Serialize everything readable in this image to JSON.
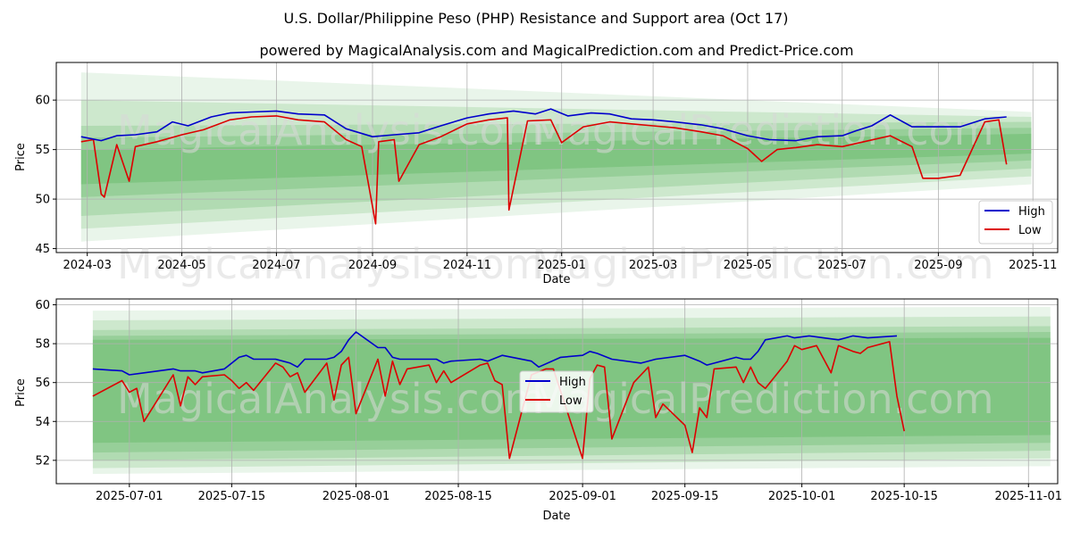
{
  "title": "U.S. Dollar/Philippine Peso (PHP) Resistance and Support area (Oct 17)",
  "subtitle": "powered by MagicalAnalysis.com and MagicalPrediction.com and Predict-Price.com",
  "watermarks": [
    "MagicalAnalysis.com",
    "MagicalPrediction.com"
  ],
  "colors": {
    "high": "#0000cc",
    "low": "#dd0000",
    "band": "#4caf50"
  },
  "chart_data": [
    {
      "type": "line",
      "xlabel": "Date",
      "ylabel": "Price",
      "xlim": [
        "2024-02-10",
        "2025-11-17"
      ],
      "ylim": [
        44.6,
        63.8
      ],
      "grid": true,
      "legend": {
        "position": "bottom-right",
        "entries": [
          "High",
          "Low"
        ]
      },
      "x_ticks": [
        "2024-03",
        "2024-05",
        "2024-07",
        "2024-09",
        "2024-11",
        "2025-01",
        "2025-03",
        "2025-05",
        "2025-07",
        "2025-09",
        "2025-11"
      ],
      "y_ticks": [
        45,
        50,
        55,
        60
      ],
      "bands": {
        "start": "2024-02-26",
        "end": "2025-10-31",
        "lower_start": [
          45.7,
          47.0,
          48.3,
          50.2,
          51.5
        ],
        "lower_end": [
          51.5,
          52.3,
          53.1,
          53.9,
          54.6
        ],
        "upper_start": [
          62.8,
          60.0,
          57.4,
          56.2,
          55.0
        ],
        "upper_end": [
          58.8,
          58.3,
          57.8,
          57.2,
          56.6
        ]
      },
      "series": [
        {
          "name": "High",
          "x": [
            "2024-02-26",
            "2024-03-10",
            "2024-03-20",
            "2024-04-01",
            "2024-04-15",
            "2024-04-25",
            "2024-05-05",
            "2024-05-20",
            "2024-06-01",
            "2024-06-15",
            "2024-07-01",
            "2024-07-15",
            "2024-08-01",
            "2024-08-15",
            "2024-09-01",
            "2024-09-15",
            "2024-10-01",
            "2024-10-15",
            "2024-11-01",
            "2024-11-15",
            "2024-12-01",
            "2024-12-15",
            "2024-12-25",
            "2025-01-05",
            "2025-01-20",
            "2025-02-01",
            "2025-02-15",
            "2025-03-01",
            "2025-03-15",
            "2025-04-01",
            "2025-04-15",
            "2025-05-01",
            "2025-05-15",
            "2025-06-01",
            "2025-06-15",
            "2025-07-01",
            "2025-07-10",
            "2025-07-20",
            "2025-08-01",
            "2025-08-15",
            "2025-09-01",
            "2025-09-15",
            "2025-10-01",
            "2025-10-15"
          ],
          "values": [
            56.3,
            55.9,
            56.4,
            56.5,
            56.8,
            57.8,
            57.4,
            58.3,
            58.7,
            58.8,
            58.9,
            58.6,
            58.5,
            57.1,
            56.3,
            56.5,
            56.7,
            57.4,
            58.2,
            58.6,
            58.9,
            58.6,
            59.1,
            58.4,
            58.7,
            58.6,
            58.1,
            58.0,
            57.8,
            57.5,
            57.1,
            56.4,
            56.0,
            55.9,
            56.3,
            56.4,
            56.9,
            57.4,
            58.5,
            57.3,
            57.3,
            57.3,
            58.1,
            58.3
          ]
        },
        {
          "name": "Low",
          "x": [
            "2024-02-26",
            "2024-03-05",
            "2024-03-10",
            "2024-03-12",
            "2024-03-20",
            "2024-03-28",
            "2024-04-01",
            "2024-04-15",
            "2024-05-01",
            "2024-05-15",
            "2024-06-01",
            "2024-06-15",
            "2024-07-01",
            "2024-07-15",
            "2024-08-01",
            "2024-08-15",
            "2024-08-25",
            "2024-09-03",
            "2024-09-05",
            "2024-09-15",
            "2024-09-18",
            "2024-10-01",
            "2024-10-15",
            "2024-11-01",
            "2024-11-15",
            "2024-11-27",
            "2024-11-28",
            "2024-12-10",
            "2024-12-25",
            "2025-01-01",
            "2025-01-15",
            "2025-02-01",
            "2025-02-15",
            "2025-03-01",
            "2025-03-15",
            "2025-04-01",
            "2025-04-15",
            "2025-05-01",
            "2025-05-10",
            "2025-05-20",
            "2025-06-01",
            "2025-06-15",
            "2025-07-01",
            "2025-07-15",
            "2025-08-01",
            "2025-08-15",
            "2025-08-22",
            "2025-09-01",
            "2025-09-15",
            "2025-10-01",
            "2025-10-10",
            "2025-10-15"
          ],
          "values": [
            55.8,
            56.0,
            50.5,
            50.2,
            55.5,
            51.8,
            55.3,
            55.8,
            56.5,
            57.0,
            58.0,
            58.3,
            58.4,
            58.0,
            57.8,
            56.0,
            55.3,
            47.5,
            55.8,
            56.0,
            51.8,
            55.5,
            56.3,
            57.6,
            58.0,
            58.2,
            48.9,
            57.9,
            58.0,
            55.7,
            57.3,
            57.8,
            57.6,
            57.4,
            57.2,
            56.8,
            56.4,
            55.1,
            53.8,
            55.0,
            55.2,
            55.5,
            55.3,
            55.8,
            56.4,
            55.3,
            52.1,
            52.1,
            52.4,
            57.8,
            58.0,
            53.5
          ]
        }
      ]
    },
    {
      "type": "line",
      "xlabel": "Date",
      "ylabel": "Price",
      "xlim": [
        "2025-06-21",
        "2025-11-05"
      ],
      "ylim": [
        50.8,
        60.3
      ],
      "grid": true,
      "legend": {
        "position": "center",
        "entries": [
          "High",
          "Low"
        ]
      },
      "x_ticks": [
        "2025-07-01",
        "2025-07-15",
        "2025-08-01",
        "2025-08-15",
        "2025-09-01",
        "2025-09-15",
        "2025-10-01",
        "2025-10-15",
        "2025-11-01"
      ],
      "y_ticks": [
        52,
        54,
        56,
        58,
        60
      ],
      "bands": {
        "start": "2025-06-26",
        "end": "2025-11-04",
        "lower_start": [
          51.3,
          51.6,
          52.0,
          52.4,
          52.9
        ],
        "lower_end": [
          51.7,
          52.1,
          52.5,
          52.9,
          53.3
        ],
        "upper_start": [
          59.7,
          59.2,
          58.7,
          58.4,
          58.2
        ],
        "upper_end": [
          59.9,
          59.4,
          58.9,
          58.6,
          58.3
        ]
      },
      "series": [
        {
          "name": "High",
          "x": [
            "2025-06-26",
            "2025-06-30",
            "2025-07-01",
            "2025-07-03",
            "2025-07-07",
            "2025-07-08",
            "2025-07-10",
            "2025-07-11",
            "2025-07-14",
            "2025-07-16",
            "2025-07-17",
            "2025-07-18",
            "2025-07-21",
            "2025-07-22",
            "2025-07-23",
            "2025-07-24",
            "2025-07-25",
            "2025-07-28",
            "2025-07-29",
            "2025-07-30",
            "2025-07-31",
            "2025-08-01",
            "2025-08-04",
            "2025-08-05",
            "2025-08-06",
            "2025-08-07",
            "2025-08-08",
            "2025-08-11",
            "2025-08-12",
            "2025-08-13",
            "2025-08-14",
            "2025-08-18",
            "2025-08-19",
            "2025-08-21",
            "2025-08-25",
            "2025-08-26",
            "2025-08-29",
            "2025-09-01",
            "2025-09-02",
            "2025-09-03",
            "2025-09-05",
            "2025-09-09",
            "2025-09-11",
            "2025-09-15",
            "2025-09-17",
            "2025-09-18",
            "2025-09-22",
            "2025-09-23",
            "2025-09-24",
            "2025-09-25",
            "2025-09-26",
            "2025-09-29",
            "2025-09-30",
            "2025-10-02",
            "2025-10-06",
            "2025-10-07",
            "2025-10-08",
            "2025-10-10",
            "2025-10-14"
          ],
          "values": [
            56.7,
            56.6,
            56.4,
            56.5,
            56.7,
            56.6,
            56.6,
            56.5,
            56.7,
            57.3,
            57.4,
            57.2,
            57.2,
            57.1,
            57.0,
            56.8,
            57.2,
            57.2,
            57.3,
            57.6,
            58.2,
            58.6,
            57.8,
            57.8,
            57.3,
            57.2,
            57.2,
            57.2,
            57.2,
            57.0,
            57.1,
            57.2,
            57.1,
            57.4,
            57.1,
            56.8,
            57.3,
            57.4,
            57.6,
            57.5,
            57.2,
            57.0,
            57.2,
            57.4,
            57.1,
            56.9,
            57.3,
            57.2,
            57.2,
            57.6,
            58.2,
            58.4,
            58.3,
            58.4,
            58.2,
            58.3,
            58.4,
            58.3,
            58.4
          ]
        },
        {
          "name": "Low",
          "x": [
            "2025-06-26",
            "2025-06-30",
            "2025-07-01",
            "2025-07-02",
            "2025-07-03",
            "2025-07-07",
            "2025-07-08",
            "2025-07-09",
            "2025-07-10",
            "2025-07-11",
            "2025-07-14",
            "2025-07-15",
            "2025-07-16",
            "2025-07-17",
            "2025-07-18",
            "2025-07-21",
            "2025-07-22",
            "2025-07-23",
            "2025-07-24",
            "2025-07-25",
            "2025-07-28",
            "2025-07-29",
            "2025-07-30",
            "2025-07-31",
            "2025-08-01",
            "2025-08-04",
            "2025-08-05",
            "2025-08-06",
            "2025-08-07",
            "2025-08-08",
            "2025-08-11",
            "2025-08-12",
            "2025-08-13",
            "2025-08-14",
            "2025-08-18",
            "2025-08-19",
            "2025-08-20",
            "2025-08-21",
            "2025-08-22",
            "2025-08-25",
            "2025-08-27",
            "2025-08-28",
            "2025-09-01",
            "2025-09-02",
            "2025-09-03",
            "2025-09-04",
            "2025-09-05",
            "2025-09-08",
            "2025-09-10",
            "2025-09-11",
            "2025-09-12",
            "2025-09-15",
            "2025-09-16",
            "2025-09-17",
            "2025-09-18",
            "2025-09-19",
            "2025-09-22",
            "2025-09-23",
            "2025-09-24",
            "2025-09-25",
            "2025-09-26",
            "2025-09-29",
            "2025-09-30",
            "2025-10-01",
            "2025-10-03",
            "2025-10-05",
            "2025-10-06",
            "2025-10-08",
            "2025-10-09",
            "2025-10-10",
            "2025-10-13",
            "2025-10-14",
            "2025-10-15"
          ],
          "values": [
            55.3,
            56.1,
            55.5,
            55.7,
            54.0,
            56.4,
            54.8,
            56.3,
            55.9,
            56.3,
            56.4,
            56.1,
            55.7,
            56.0,
            55.6,
            57.0,
            56.8,
            56.3,
            56.5,
            55.5,
            57.0,
            55.1,
            56.9,
            57.3,
            54.4,
            57.2,
            55.3,
            57.1,
            55.9,
            56.7,
            56.9,
            56.0,
            56.6,
            56.0,
            56.9,
            57.0,
            56.1,
            55.9,
            52.1,
            56.4,
            56.7,
            56.7,
            52.1,
            56.2,
            56.9,
            56.8,
            53.1,
            56.0,
            56.8,
            54.2,
            54.9,
            53.8,
            52.4,
            54.7,
            54.2,
            56.7,
            56.8,
            56.0,
            56.8,
            56.0,
            55.7,
            57.1,
            57.9,
            57.7,
            57.9,
            56.5,
            57.9,
            57.6,
            57.5,
            57.8,
            58.1,
            55.3,
            53.5
          ]
        }
      ]
    }
  ]
}
